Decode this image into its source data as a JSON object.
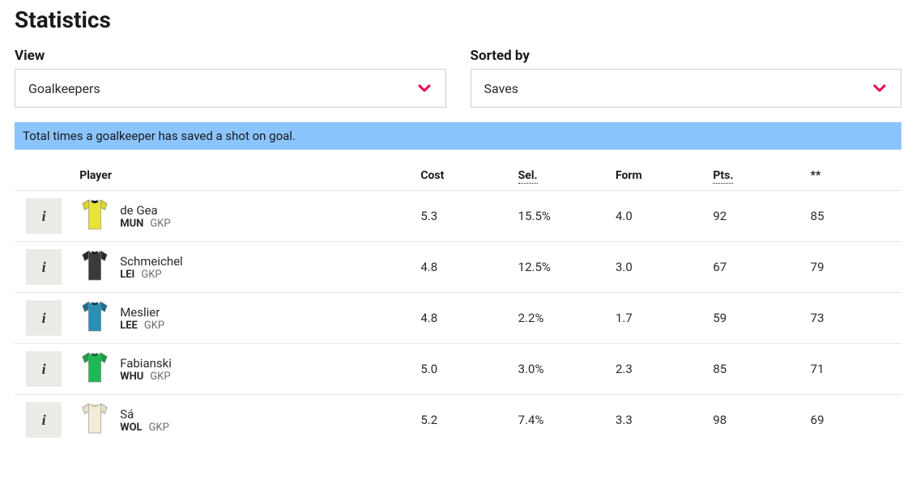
{
  "title": "Statistics",
  "filters": {
    "view": {
      "label": "View",
      "value": "Goalkeepers"
    },
    "sort": {
      "label": "Sorted by",
      "value": "Saves"
    }
  },
  "accent_color": "#e90052",
  "banner_bg": "#8bc4ff",
  "info_text": "Total times a goalkeeper has saved a shot on goal.",
  "columns": {
    "player": "Player",
    "cost": "Cost",
    "sel": "Sel.",
    "form": "Form",
    "pts": "Pts.",
    "extra": "**"
  },
  "rows": [
    {
      "name": "de Gea",
      "club": "MUN",
      "pos": "GKP",
      "kit": {
        "body": "#e8e337",
        "sleeve": "#d9d52c",
        "collar": "#111111"
      },
      "cost": "5.3",
      "sel": "15.5%",
      "form": "4.0",
      "pts": "92",
      "extra": "85"
    },
    {
      "name": "Schmeichel",
      "club": "LEI",
      "pos": "GKP",
      "kit": {
        "body": "#3a3a3a",
        "sleeve": "#2a2a2a",
        "collar": "#1a1a1a"
      },
      "cost": "4.8",
      "sel": "12.5%",
      "form": "3.0",
      "pts": "67",
      "extra": "79"
    },
    {
      "name": "Meslier",
      "club": "LEE",
      "pos": "GKP",
      "kit": {
        "body": "#2b8fb3",
        "sleeve": "#1e7090",
        "collar": "#0d3a4d"
      },
      "cost": "4.8",
      "sel": "2.2%",
      "form": "1.7",
      "pts": "59",
      "extra": "73"
    },
    {
      "name": "Fabianski",
      "club": "WHU",
      "pos": "GKP",
      "kit": {
        "body": "#1db954",
        "sleeve": "#18a048",
        "collar": "#0b5e2a"
      },
      "cost": "5.0",
      "sel": "3.0%",
      "form": "2.3",
      "pts": "85",
      "extra": "71"
    },
    {
      "name": "Sá",
      "club": "WOL",
      "pos": "GKP",
      "kit": {
        "body": "#f2ecd8",
        "sleeve": "#e6dfc6",
        "collar": "#cfc6a6"
      },
      "cost": "5.2",
      "sel": "7.4%",
      "form": "3.3",
      "pts": "98",
      "extra": "69"
    }
  ]
}
